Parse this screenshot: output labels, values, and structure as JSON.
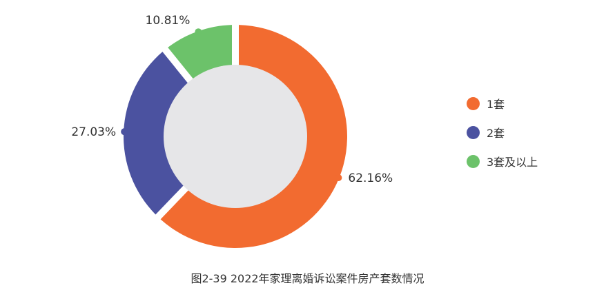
{
  "chart_data": {
    "type": "pie",
    "title": "",
    "categories": [
      "1套",
      "2套",
      "3套及以上"
    ],
    "values": [
      62.16,
      27.03,
      10.81
    ],
    "value_labels": [
      "62.16%",
      "27.03%",
      "10.81%"
    ],
    "colors": [
      "#F26B30",
      "#4B52A0",
      "#6CC26A"
    ],
    "center_color": "#E6E6E8",
    "legend": "right"
  },
  "caption": "图2-39  2022年家理离婚诉讼案件房产套数情况"
}
